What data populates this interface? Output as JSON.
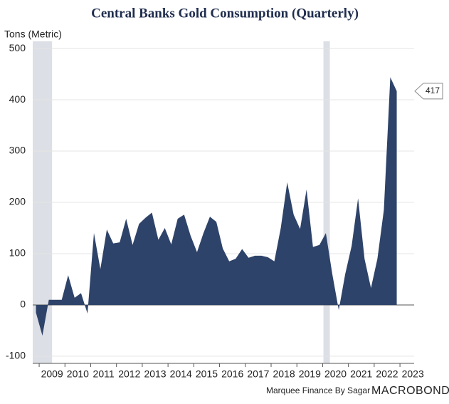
{
  "chart_data": {
    "type": "area",
    "title": "Central Banks Gold Consumption (Quarterly)",
    "y_label": "Tons (Metric)",
    "source": "Marquee Finance By Sagar",
    "brand": "MACROBOND",
    "color": "#2e4369",
    "shade_color": "#dcdfe5",
    "grid": true,
    "x": [
      2008.875,
      2009.125,
      2009.375,
      2009.625,
      2009.875,
      2010.125,
      2010.375,
      2010.625,
      2010.875,
      2011.125,
      2011.375,
      2011.625,
      2011.875,
      2012.125,
      2012.375,
      2012.625,
      2012.875,
      2013.125,
      2013.375,
      2013.625,
      2013.875,
      2014.125,
      2014.375,
      2014.625,
      2014.875,
      2015.125,
      2015.375,
      2015.625,
      2015.875,
      2016.125,
      2016.375,
      2016.625,
      2016.875,
      2017.125,
      2017.375,
      2017.625,
      2017.875,
      2018.125,
      2018.375,
      2018.625,
      2018.875,
      2019.125,
      2019.375,
      2019.625,
      2019.875,
      2020.125,
      2020.375,
      2020.625,
      2020.875,
      2021.125,
      2021.375,
      2021.625,
      2021.875,
      2022.125,
      2022.375,
      2022.625,
      2022.875
    ],
    "values": [
      -15,
      -60,
      10,
      10,
      10,
      58,
      14,
      23,
      -17,
      140,
      70,
      147,
      120,
      122,
      168,
      117,
      158,
      170,
      180,
      127,
      150,
      118,
      168,
      176,
      135,
      103,
      140,
      172,
      162,
      110,
      85,
      90,
      109,
      92,
      96,
      96,
      93,
      85,
      150,
      239,
      176,
      148,
      225,
      113,
      117,
      140,
      60,
      -10,
      60,
      115,
      208,
      90,
      33,
      90,
      185,
      444,
      417
    ],
    "shaded_periods": [
      [
        2008.75,
        2009.5
      ],
      [
        2020.03,
        2020.28
      ]
    ],
    "xlim": [
      2008.75,
      2023.55
    ],
    "xticks": [
      2009,
      2010,
      2011,
      2012,
      2013,
      2014,
      2015,
      2016,
      2017,
      2018,
      2019,
      2020,
      2021,
      2022,
      2023
    ],
    "ylim": [
      -114,
      514
    ],
    "yticks": [
      -100,
      0,
      100,
      200,
      300,
      400,
      500
    ]
  }
}
